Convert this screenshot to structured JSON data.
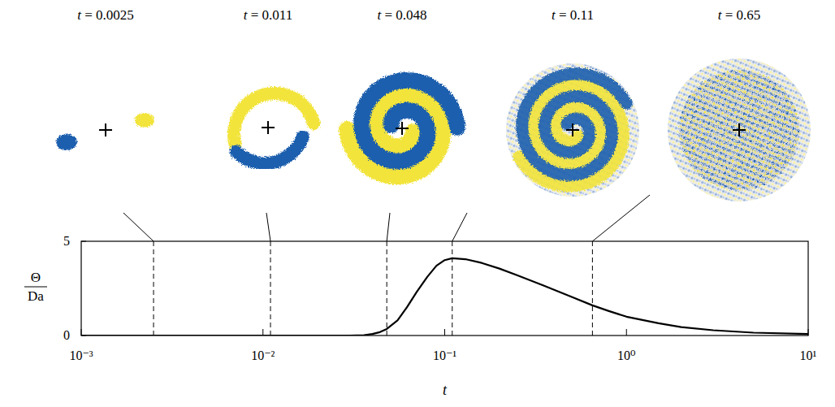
{
  "chart_data": {
    "type": "line",
    "x_label": "t",
    "y_label": {
      "numerator": "Θ",
      "denominator": "Da"
    },
    "log": "x",
    "xlim": [
      0.001,
      10
    ],
    "ylim": [
      0,
      5
    ],
    "xticks": [
      {
        "value": 0.001,
        "label": "10⁻³"
      },
      {
        "value": 0.01,
        "label": "10⁻²"
      },
      {
        "value": 0.1,
        "label": "10⁻¹"
      },
      {
        "value": 1,
        "label": "10⁰"
      },
      {
        "value": 10,
        "label": "10¹"
      }
    ],
    "yticks": [
      0,
      5
    ],
    "color": "#000000",
    "x": [
      0.001,
      0.01,
      0.03,
      0.036,
      0.04,
      0.044,
      0.048,
      0.055,
      0.062,
      0.07,
      0.08,
      0.09,
      0.1,
      0.11,
      0.13,
      0.16,
      0.2,
      0.25,
      0.35,
      0.5,
      0.65,
      0.8,
      1,
      1.5,
      2,
      3,
      5,
      10
    ],
    "values": [
      0,
      0,
      0,
      0.02,
      0.08,
      0.18,
      0.35,
      0.8,
      1.5,
      2.3,
      3.1,
      3.7,
      4.0,
      4.1,
      4.05,
      3.85,
      3.55,
      3.2,
      2.65,
      2.05,
      1.6,
      1.3,
      1.0,
      0.65,
      0.45,
      0.28,
      0.15,
      0.08
    ],
    "snapshots": [
      {
        "t": 0.0025,
        "label": "t = 0.0025"
      },
      {
        "t": 0.011,
        "label": "t = 0.011"
      },
      {
        "t": 0.048,
        "label": "t = 0.048"
      },
      {
        "t": 0.11,
        "label": "t = 0.11"
      },
      {
        "t": 0.65,
        "label": "t = 0.65"
      }
    ]
  }
}
